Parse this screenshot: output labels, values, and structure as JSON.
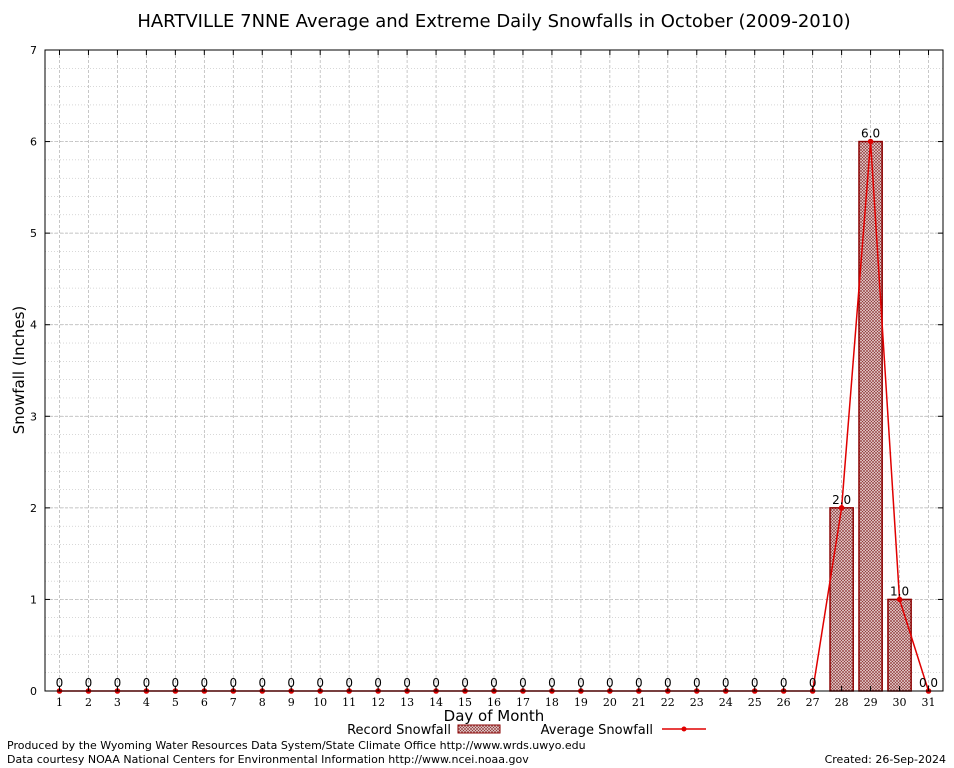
{
  "chart_data": {
    "type": "bar",
    "title": "HARTVILLE 7NNE Average and Extreme Daily Snowfalls in October (2009-2010)",
    "xlabel": "Day of Month",
    "ylabel": "Snowfall (Inches)",
    "ylim": [
      0,
      7
    ],
    "xlim": [
      0.5,
      31.5
    ],
    "yticks": [
      "0",
      "1",
      "2",
      "3",
      "4",
      "5",
      "6",
      "7"
    ],
    "categories": [
      "1",
      "2",
      "3",
      "4",
      "5",
      "6",
      "7",
      "8",
      "9",
      "10",
      "11",
      "12",
      "13",
      "14",
      "15",
      "16",
      "17",
      "18",
      "19",
      "20",
      "21",
      "22",
      "23",
      "24",
      "25",
      "26",
      "27",
      "28",
      "29",
      "30",
      "31"
    ],
    "series": [
      {
        "name": "Record Snowfall",
        "kind": "bar",
        "values": [
          0,
          0,
          0,
          0,
          0,
          0,
          0,
          0,
          0,
          0,
          0,
          0,
          0,
          0,
          0,
          0,
          0,
          0,
          0,
          0,
          0,
          0,
          0,
          0,
          0,
          0,
          0,
          2.0,
          6.0,
          1.0,
          0.0
        ]
      },
      {
        "name": "Average Snowfall",
        "kind": "line",
        "values": [
          0,
          0,
          0,
          0,
          0,
          0,
          0,
          0,
          0,
          0,
          0,
          0,
          0,
          0,
          0,
          0,
          0,
          0,
          0,
          0,
          0,
          0,
          0,
          0,
          0,
          0,
          0,
          2.0,
          6.0,
          1.0,
          0.0
        ]
      }
    ],
    "data_labels": [
      "0",
      "0",
      "0",
      "0",
      "0",
      "0",
      "0",
      "0",
      "0",
      "0",
      "0",
      "0",
      "0",
      "0",
      "0",
      "0",
      "0",
      "0",
      "0",
      "0",
      "0",
      "0",
      "0",
      "0",
      "0",
      "0",
      "0",
      "2.0",
      "6.0",
      "1.0",
      "0.0"
    ],
    "grid": true,
    "legend_position": "bottom-center",
    "colors": {
      "bar_fill": "#c8a8a8",
      "bar_stroke": "#8b0000",
      "line": "#e00000",
      "grid": "#b0b0b0"
    }
  },
  "footer": {
    "produced_by": "Produced by the Wyoming Water Resources Data System/State Climate Office http://www.wrds.uwyo.edu",
    "courtesy": "Data courtesy NOAA National Centers for Environmental Information http://www.ncei.noaa.gov",
    "created": "Created:  26-Sep-2024"
  }
}
